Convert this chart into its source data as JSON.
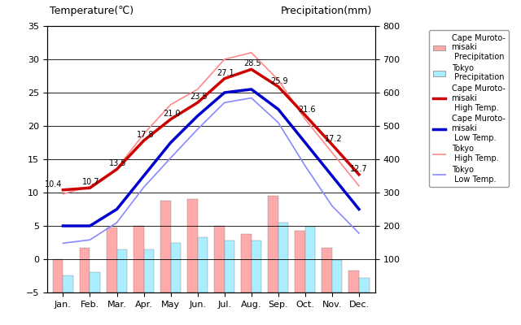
{
  "months": [
    "Jan.",
    "Feb.",
    "Mar.",
    "Apr.",
    "May",
    "Jun.",
    "Jul.",
    "Aug.",
    "Sep.",
    "Oct.",
    "Nov.",
    "Dec."
  ],
  "cape_muroto_high": [
    10.4,
    10.7,
    13.5,
    17.8,
    21.0,
    23.5,
    27.1,
    28.5,
    25.9,
    21.6,
    17.2,
    12.7
  ],
  "cape_muroto_low": [
    5.0,
    5.0,
    7.5,
    12.5,
    17.5,
    21.5,
    25.0,
    25.5,
    22.5,
    17.5,
    12.5,
    7.5
  ],
  "tokyo_high": [
    9.8,
    10.9,
    13.6,
    18.8,
    23.2,
    25.5,
    30.0,
    31.0,
    26.9,
    21.0,
    16.0,
    11.0
  ],
  "tokyo_low": [
    2.4,
    2.9,
    5.5,
    10.8,
    15.2,
    19.5,
    23.5,
    24.2,
    20.5,
    14.0,
    8.0,
    3.9
  ],
  "cape_muroto_precip": [
    100,
    135,
    195,
    200,
    275,
    280,
    200,
    175,
    290,
    185,
    135,
    65
  ],
  "tokyo_precip": [
    52,
    60,
    130,
    130,
    148,
    165,
    155,
    155,
    210,
    197,
    97,
    43
  ],
  "temp_ylim": [
    -5,
    35
  ],
  "precip_ylim": [
    0,
    800
  ],
  "plot_bg_color": "#c8c8c8",
  "cape_high_color": "#cc0000",
  "cape_low_color": "#0000cc",
  "tokyo_high_color": "#ff8888",
  "tokyo_low_color": "#8888ff",
  "cape_precip_color": "#ffaaaa",
  "tokyo_precip_color": "#aaeeff",
  "title_left": "Temperature(℃)",
  "title_right": "Precipitation(mm)",
  "bar_width": 0.38,
  "legend_entries": [
    "Cape Muroto-\nmisaki\n Precipitation",
    "Tokyo\n Precipitation",
    "Cape Muroto-\nmisaki\n High Temp.",
    "Cape Muroto-\nmisaki\n Low Temp.",
    "Tokyo\n High Temp.",
    "Tokyo\n Low Temp."
  ]
}
